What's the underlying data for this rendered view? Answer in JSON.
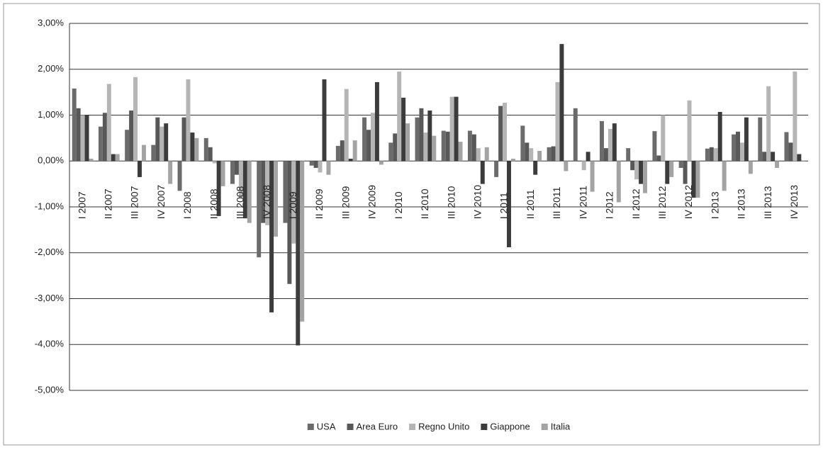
{
  "chart_data": {
    "type": "bar",
    "categories": [
      "I 2007",
      "II 2007",
      "III 2007",
      "IV 2007",
      "I 2008",
      "II 2008",
      "III 2008",
      "IV 2008",
      "I 2009",
      "II 2009",
      "III 2009",
      "IV 2009",
      "I 2010",
      "II 2010",
      "III 2010",
      "IV 2010",
      "I 2011",
      "II 2011",
      "III 2011",
      "IV 2011",
      "I 2012",
      "II 2012",
      "III 2012",
      "IV 2012",
      "I 2013",
      "II 2013",
      "III 2013",
      "IV 2013"
    ],
    "series": [
      {
        "name": "USA",
        "color": "#6b6b6b",
        "values": [
          1.58,
          0.75,
          0.68,
          0.35,
          -0.65,
          0.5,
          -0.5,
          -2.1,
          -1.35,
          -0.1,
          0.33,
          0.95,
          0.4,
          0.95,
          0.66,
          0.66,
          -0.35,
          0.77,
          0.3,
          1.15,
          0.87,
          0.28,
          0.65,
          -0.15,
          0.27,
          0.58,
          0.95,
          0.63
        ]
      },
      {
        "name": "Area Euro",
        "color": "#585858",
        "values": [
          1.15,
          1.05,
          1.1,
          0.95,
          0.95,
          0.3,
          -0.3,
          -1.35,
          -2.68,
          -0.15,
          0.45,
          0.68,
          0.6,
          1.15,
          0.64,
          0.58,
          1.2,
          0.4,
          0.32,
          0.0,
          0.28,
          -0.2,
          0.12,
          -0.5,
          0.3,
          0.64,
          0.2,
          0.4
        ]
      },
      {
        "name": "Regno Unito",
        "color": "#b5b5b5",
        "values": [
          1.0,
          1.68,
          1.83,
          0.75,
          1.78,
          -0.05,
          -0.8,
          -1.4,
          -1.8,
          -0.25,
          1.57,
          1.05,
          1.95,
          0.62,
          1.4,
          0.28,
          1.27,
          0.28,
          1.72,
          -0.2,
          0.7,
          -0.4,
          1.0,
          1.32,
          0.28,
          0.4,
          1.63,
          1.95
        ]
      },
      {
        "name": "Giappone",
        "color": "#3c3c3c",
        "values": [
          1.0,
          0.15,
          -0.35,
          0.82,
          0.62,
          -1.2,
          -1.25,
          -3.3,
          -4.02,
          1.78,
          0.05,
          1.72,
          1.38,
          1.1,
          1.4,
          -0.5,
          -1.88,
          -0.3,
          2.55,
          0.2,
          0.82,
          -0.5,
          -0.5,
          -0.8,
          1.07,
          0.95,
          0.2,
          0.15
        ]
      },
      {
        "name": "Italia",
        "color": "#a3a3a3",
        "values": [
          0.05,
          0.15,
          0.35,
          -0.5,
          0.5,
          -0.55,
          -1.35,
          -1.65,
          -3.5,
          -0.3,
          0.45,
          -0.08,
          0.82,
          0.55,
          0.42,
          0.3,
          0.05,
          0.22,
          -0.22,
          -0.67,
          -0.9,
          -0.7,
          -0.35,
          -0.8,
          -0.65,
          -0.28,
          -0.15,
          0.0
        ]
      }
    ],
    "ylim": [
      -5,
      3
    ],
    "yticks": [
      {
        "value": -5,
        "label": "-5,00%"
      },
      {
        "value": -4,
        "label": "-4,00%"
      },
      {
        "value": -3,
        "label": "-3,00%"
      },
      {
        "value": -2,
        "label": "-2,00%"
      },
      {
        "value": -1,
        "label": "-1,00%"
      },
      {
        "value": 0,
        "label": "0,00%"
      },
      {
        "value": 1,
        "label": "1,00%"
      },
      {
        "value": 2,
        "label": "2,00%"
      },
      {
        "value": 3,
        "label": "3,00%"
      }
    ],
    "grid": true
  }
}
